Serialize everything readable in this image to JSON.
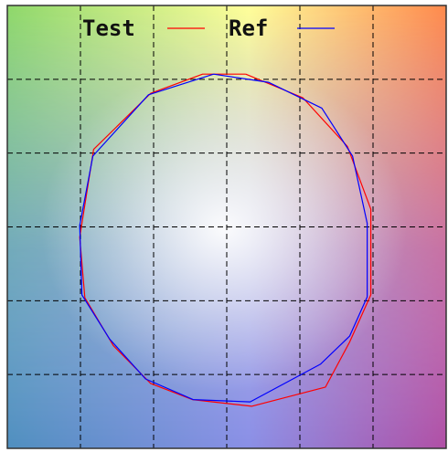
{
  "chart_data": {
    "type": "line",
    "title": "",
    "xlabel": "",
    "ylabel": "",
    "xlim": [
      0,
      6
    ],
    "ylim": [
      0,
      6
    ],
    "grid": true,
    "grid_style": "dashed",
    "legend_position": "top",
    "colors": {
      "test": "#ff0000",
      "ref": "#0000ff",
      "grid": "#000000",
      "frame": "#333333"
    },
    "series": [
      {
        "name": "Test",
        "x": [
          3.26,
          4.04,
          4.65,
          4.97,
          4.97,
          4.68,
          4.35,
          3.34,
          2.53,
          1.96,
          1.45,
          1.06,
          0.99,
          1.18,
          1.96,
          2.67,
          3.26
        ],
        "y": [
          5.07,
          4.75,
          4.09,
          3.24,
          2.08,
          1.44,
          0.83,
          0.57,
          0.66,
          0.88,
          1.39,
          2.04,
          2.86,
          4.05,
          4.81,
          5.07,
          5.07
        ]
      },
      {
        "name": "Ref",
        "x": [
          2.82,
          3.57,
          4.3,
          4.72,
          4.92,
          4.92,
          4.68,
          4.28,
          3.32,
          2.54,
          1.89,
          1.4,
          1.02,
          0.99,
          1.17,
          1.93,
          2.82
        ],
        "y": [
          5.07,
          4.96,
          4.61,
          3.96,
          3.05,
          2.05,
          1.52,
          1.14,
          0.63,
          0.66,
          0.94,
          1.48,
          2.08,
          3.02,
          3.96,
          4.79,
          5.07
        ]
      }
    ]
  }
}
